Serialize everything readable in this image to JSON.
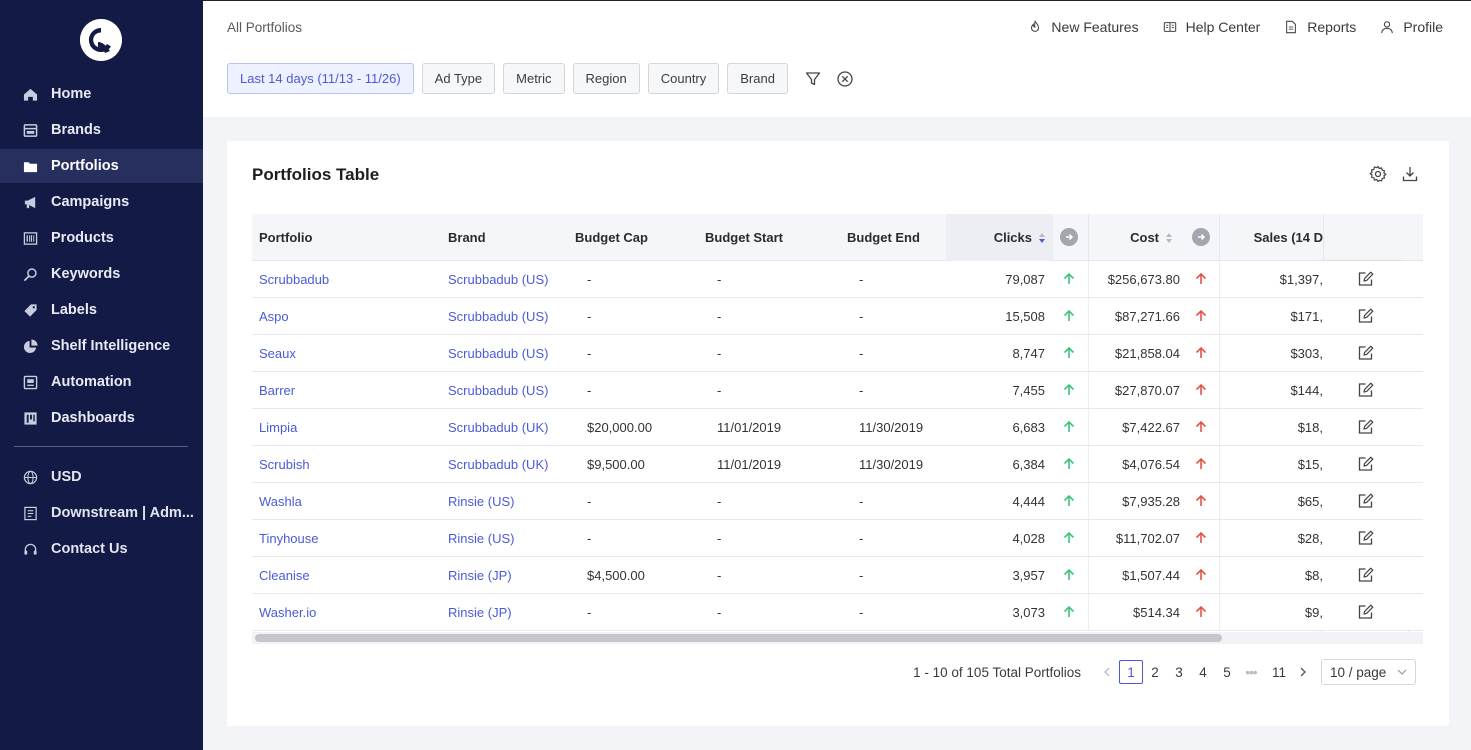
{
  "sidebar": {
    "items": [
      {
        "label": "Home",
        "icon": "home-icon"
      },
      {
        "label": "Brands",
        "icon": "brands-icon"
      },
      {
        "label": "Portfolios",
        "icon": "folder-icon"
      },
      {
        "label": "Campaigns",
        "icon": "megaphone-icon"
      },
      {
        "label": "Products",
        "icon": "barcode-icon"
      },
      {
        "label": "Keywords",
        "icon": "search-icon"
      },
      {
        "label": "Labels",
        "icon": "tag-icon"
      },
      {
        "label": "Shelf Intelligence",
        "icon": "pie-chart-icon"
      },
      {
        "label": "Automation",
        "icon": "automation-icon"
      },
      {
        "label": "Dashboards",
        "icon": "dashboard-icon"
      }
    ],
    "active_index": 2,
    "bottom": [
      {
        "label": "USD",
        "icon": "globe-icon"
      },
      {
        "label": "Downstream | Adm...",
        "icon": "building-icon"
      },
      {
        "label": "Contact Us",
        "icon": "headset-icon"
      }
    ]
  },
  "header": {
    "breadcrumb": "All Portfolios",
    "links": {
      "new_features": "New Features",
      "help_center": "Help Center",
      "reports": "Reports",
      "profile": "Profile"
    },
    "filters": {
      "date": "Last 14 days (11/13 - 11/26)",
      "ad_type": "Ad Type",
      "metric": "Metric",
      "region": "Region",
      "country": "Country",
      "brand": "Brand"
    }
  },
  "table": {
    "title": "Portfolios Table",
    "columns": {
      "portfolio": "Portfolio",
      "brand": "Brand",
      "budget_cap": "Budget Cap",
      "budget_start": "Budget Start",
      "budget_end": "Budget End",
      "clicks": "Clicks",
      "cost": "Cost",
      "sales": "Sales (14 D"
    },
    "rows": [
      {
        "portfolio": "Scrubbadub",
        "brand": "Scrubbadub (US)",
        "budget_cap": "-",
        "budget_start": "-",
        "budget_end": "-",
        "clicks": "79,087",
        "cost": "$256,673.80",
        "sales": "$1,397,"
      },
      {
        "portfolio": "Aspo",
        "brand": "Scrubbadub (US)",
        "budget_cap": "-",
        "budget_start": "-",
        "budget_end": "-",
        "clicks": "15,508",
        "cost": "$87,271.66",
        "sales": "$171,"
      },
      {
        "portfolio": "Seaux",
        "brand": "Scrubbadub (US)",
        "budget_cap": "-",
        "budget_start": "-",
        "budget_end": "-",
        "clicks": "8,747",
        "cost": "$21,858.04",
        "sales": "$303,"
      },
      {
        "portfolio": "Barrer",
        "brand": "Scrubbadub (US)",
        "budget_cap": "-",
        "budget_start": "-",
        "budget_end": "-",
        "clicks": "7,455",
        "cost": "$27,870.07",
        "sales": "$144,"
      },
      {
        "portfolio": "Limpia",
        "brand": "Scrubbadub (UK)",
        "budget_cap": "$20,000.00",
        "budget_start": "11/01/2019",
        "budget_end": "11/30/2019",
        "clicks": "6,683",
        "cost": "$7,422.67",
        "sales": "$18,"
      },
      {
        "portfolio": "Scrubish",
        "brand": "Scrubbadub (UK)",
        "budget_cap": "$9,500.00",
        "budget_start": "11/01/2019",
        "budget_end": "11/30/2019",
        "clicks": "6,384",
        "cost": "$4,076.54",
        "sales": "$15,"
      },
      {
        "portfolio": "Washla",
        "brand": "Rinsie (US)",
        "budget_cap": "-",
        "budget_start": "-",
        "budget_end": "-",
        "clicks": "4,444",
        "cost": "$7,935.28",
        "sales": "$65,"
      },
      {
        "portfolio": "Tinyhouse",
        "brand": "Rinsie (US)",
        "budget_cap": "-",
        "budget_start": "-",
        "budget_end": "-",
        "clicks": "4,028",
        "cost": "$11,702.07",
        "sales": "$28,"
      },
      {
        "portfolio": "Cleanise",
        "brand": "Rinsie (JP)",
        "budget_cap": "$4,500.00",
        "budget_start": "-",
        "budget_end": "-",
        "clicks": "3,957",
        "cost": "$1,507.44",
        "sales": "$8,"
      },
      {
        "portfolio": "Washer.io",
        "brand": "Rinsie (JP)",
        "budget_cap": "-",
        "budget_start": "-",
        "budget_end": "-",
        "clicks": "3,073",
        "cost": "$514.34",
        "sales": "$9,"
      }
    ]
  },
  "pagination": {
    "total_text": "1 - 10 of 105 Total Portfolios",
    "pages": [
      "1",
      "2",
      "3",
      "4",
      "5"
    ],
    "ellipsis": "•••",
    "last_page": "11",
    "current": "1",
    "page_size": "10 / page"
  },
  "colors": {
    "sidebar_bg": "#121a45",
    "accent": "#4a5bd7",
    "trend_up_clicks": "#3cc47c",
    "trend_up_cost": "#e5534b"
  }
}
